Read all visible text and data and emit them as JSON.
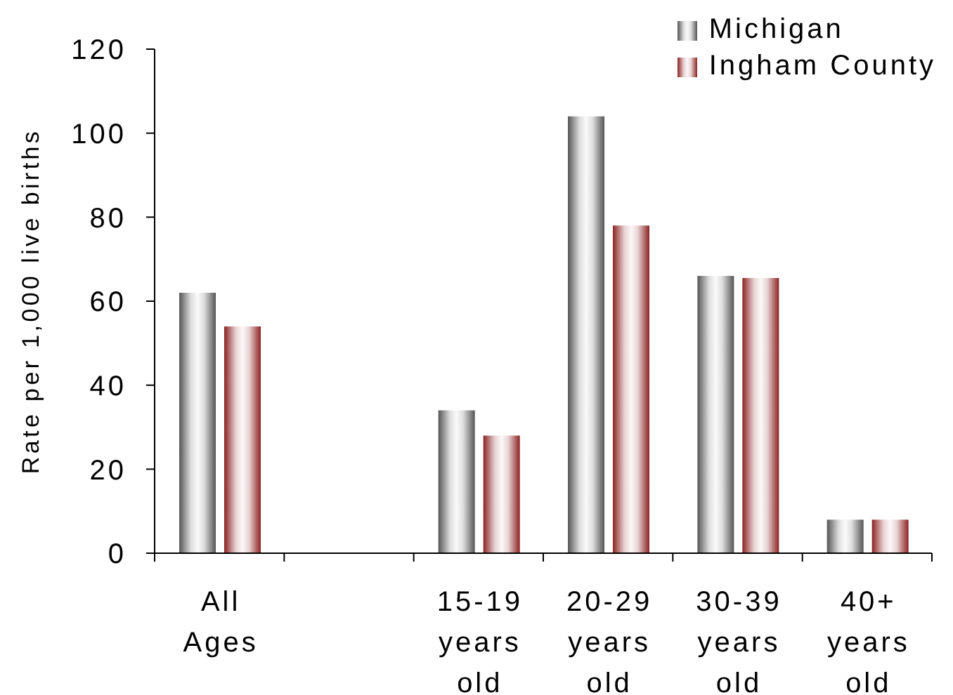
{
  "chart_data": {
    "type": "bar",
    "ylabel": "Rate per 1,000 live births",
    "categories": [
      "All Ages",
      null,
      "15-19 years old",
      "20-29 years old",
      "30-39 years old",
      "40+ years old"
    ],
    "series": [
      {
        "name": "Michigan",
        "color": "#555555",
        "values": [
          62,
          null,
          34,
          104,
          66,
          8
        ]
      },
      {
        "name": "Ingham County",
        "color": "#8b2323",
        "values": [
          54,
          null,
          28,
          78,
          65.5,
          8
        ]
      }
    ],
    "ylim": [
      0,
      120
    ],
    "yticks": [
      0,
      20,
      40,
      60,
      80,
      100,
      120
    ],
    "legend": "top right"
  }
}
